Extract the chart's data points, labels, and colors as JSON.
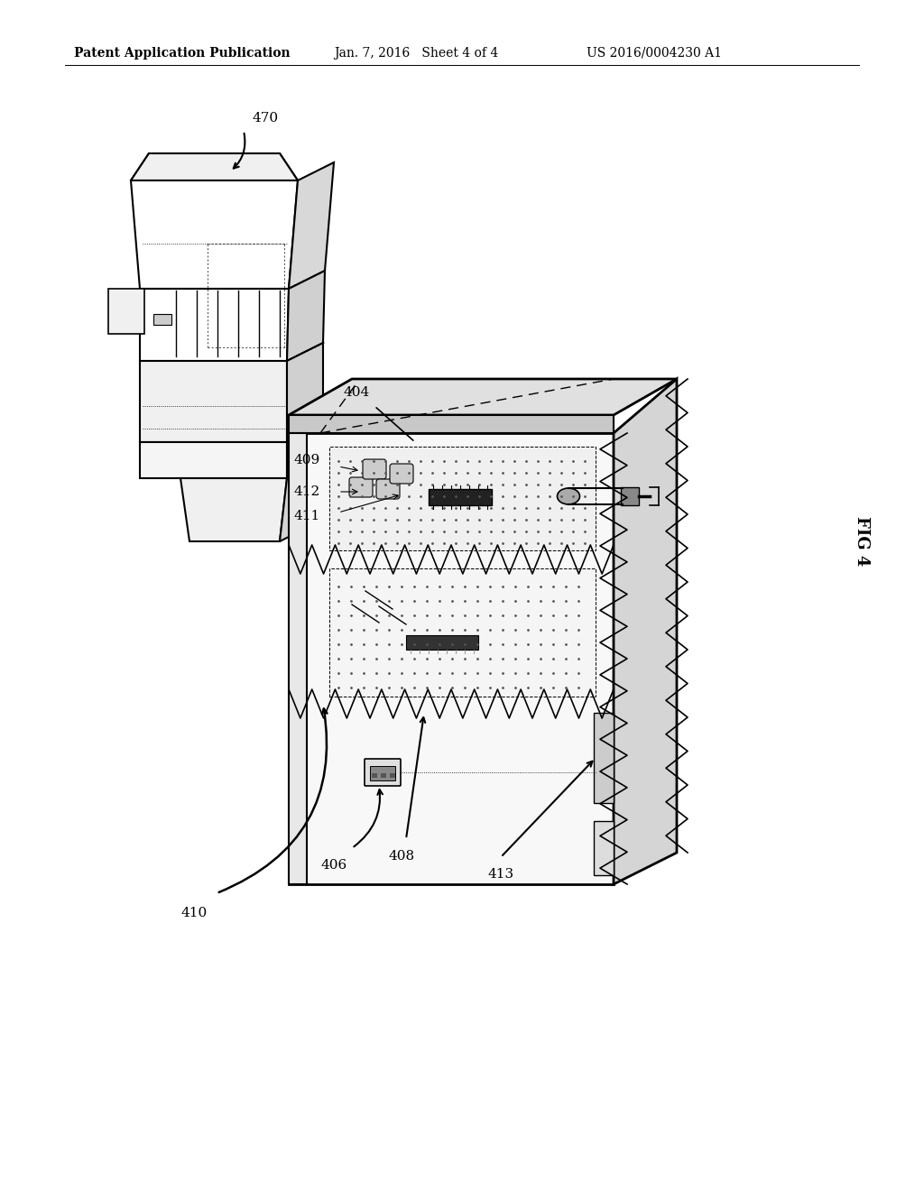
{
  "header_left": "Patent Application Publication",
  "header_center": "Jan. 7, 2016   Sheet 4 of 4",
  "header_right": "US 2016/0004230 A1",
  "fig_label": "FIG 4",
  "background_color": "#ffffff",
  "line_color": "#000000"
}
